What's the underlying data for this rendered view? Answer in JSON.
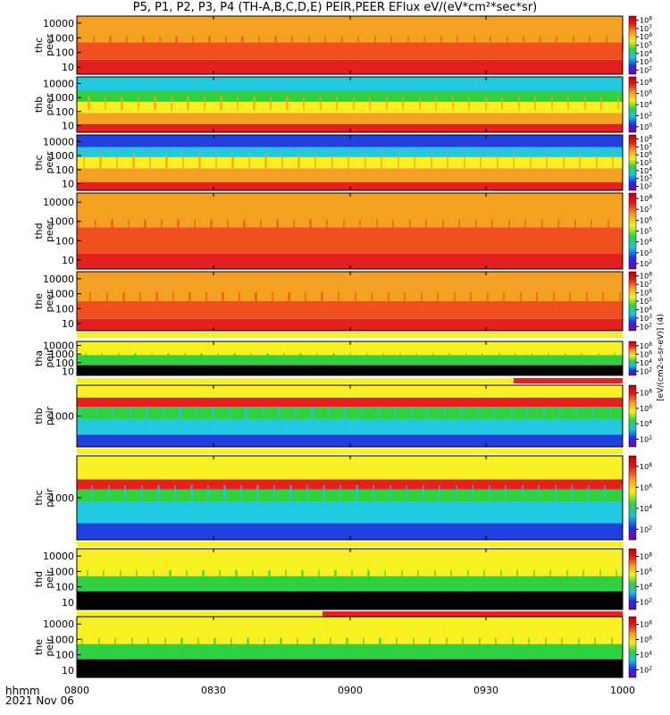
{
  "title": "P5, P1, P2, P3, P4 (TH-A,B,C,D,E) PEIR,PEER EFlux eV/(eV*cm²*sec*sr)",
  "time_label": "hhmm",
  "date_label": "2021 Nov 06",
  "colorbar_unit_label": "[eV/(cm2-s-sr-eV)] (4)",
  "colors": {
    "black": "#000000",
    "white": "#ffffff",
    "dark_red": "#c80000",
    "red": "#e42020",
    "orange_red": "#f05020",
    "orange": "#f4a020",
    "yellow": "#f8f020",
    "green": "#30d040",
    "cyan": "#20c8e0",
    "blue": "#2040e0",
    "magenta": "#a020c0"
  },
  "chart_data": {
    "type": "heatmap",
    "x_ticks": [
      "0800",
      "0830",
      "0900",
      "0930",
      "1000"
    ],
    "x_range": [
      "0800",
      "1000"
    ],
    "colorscale": [
      "#8000a0",
      "#2030e0",
      "#20c0e0",
      "#30d040",
      "#f0f020",
      "#f4a020",
      "#e02020",
      "#c00000"
    ],
    "panels": [
      {
        "label": "thc peer",
        "probe": "TH-C",
        "type": "PEER",
        "y_log": true,
        "y_ticks": [
          "10",
          "100",
          "1000",
          "10000"
        ],
        "colorbar_ticks": [
          "10^2",
          "10^3",
          "10^4",
          "10^5",
          "10^6",
          "10^7",
          "10^8"
        ]
      },
      {
        "label": "thb peer",
        "probe": "TH-B",
        "type": "PEER",
        "y_log": true,
        "y_ticks": [
          "10",
          "100",
          "1000",
          "10000"
        ],
        "colorbar_ticks": [
          "10^0",
          "10^2",
          "10^4",
          "10^6",
          "10^8"
        ]
      },
      {
        "label": "thc peer",
        "probe": "TH-C",
        "type": "PEER",
        "y_log": true,
        "y_ticks": [
          "10",
          "100",
          "1000",
          "10000"
        ],
        "colorbar_ticks": [
          "10^2",
          "10^3",
          "10^4",
          "10^5",
          "10^6",
          "10^7",
          "10^8"
        ]
      },
      {
        "label": "thd peer",
        "probe": "TH-D",
        "type": "PEER",
        "y_log": true,
        "y_ticks": [
          "10",
          "100",
          "1000",
          "10000"
        ],
        "colorbar_ticks": [
          "10^2",
          "10^3",
          "10^4",
          "10^5",
          "10^6",
          "10^7",
          "10^8"
        ]
      },
      {
        "label": "the peer",
        "probe": "TH-E",
        "type": "PEER",
        "y_log": true,
        "y_ticks": [
          "10",
          "100",
          "1000",
          "10000"
        ],
        "colorbar_ticks": [
          "10^2",
          "10^3",
          "10^4",
          "10^5",
          "10^6",
          "10^7",
          "10^8"
        ]
      },
      {
        "label": "tha peir",
        "probe": "TH-A",
        "type": "PEIR",
        "y_log": true,
        "y_ticks": [
          "10",
          "100",
          "1000",
          "10000"
        ],
        "colorbar_ticks": [
          "10^2",
          "10^4",
          "10^6",
          "10^8"
        ]
      },
      {
        "label": "thb peir",
        "probe": "TH-B",
        "type": "PEIR",
        "y_log": true,
        "y_ticks": [
          "1000"
        ],
        "colorbar_ticks": [
          "10^2",
          "10^4",
          "10^6",
          "10^8"
        ]
      },
      {
        "label": "thc peir",
        "probe": "TH-C",
        "type": "PEIR",
        "y_log": true,
        "y_ticks": [
          "1000"
        ],
        "colorbar_ticks": [
          "10^2",
          "10^4",
          "10^6",
          "10^8"
        ]
      },
      {
        "label": "thd peir",
        "probe": "TH-D",
        "type": "PEIR",
        "y_log": true,
        "y_ticks": [
          "10",
          "100",
          "1000",
          "10000"
        ],
        "colorbar_ticks": [
          "10^2",
          "10^4",
          "10^6",
          "10^8"
        ]
      },
      {
        "label": "the peir",
        "probe": "TH-E",
        "type": "PEIR",
        "y_log": true,
        "y_ticks": [
          "10",
          "100",
          "1000",
          "10000"
        ],
        "colorbar_ticks": [
          "10^2",
          "10^4",
          "10^6",
          "10^8"
        ]
      }
    ]
  }
}
